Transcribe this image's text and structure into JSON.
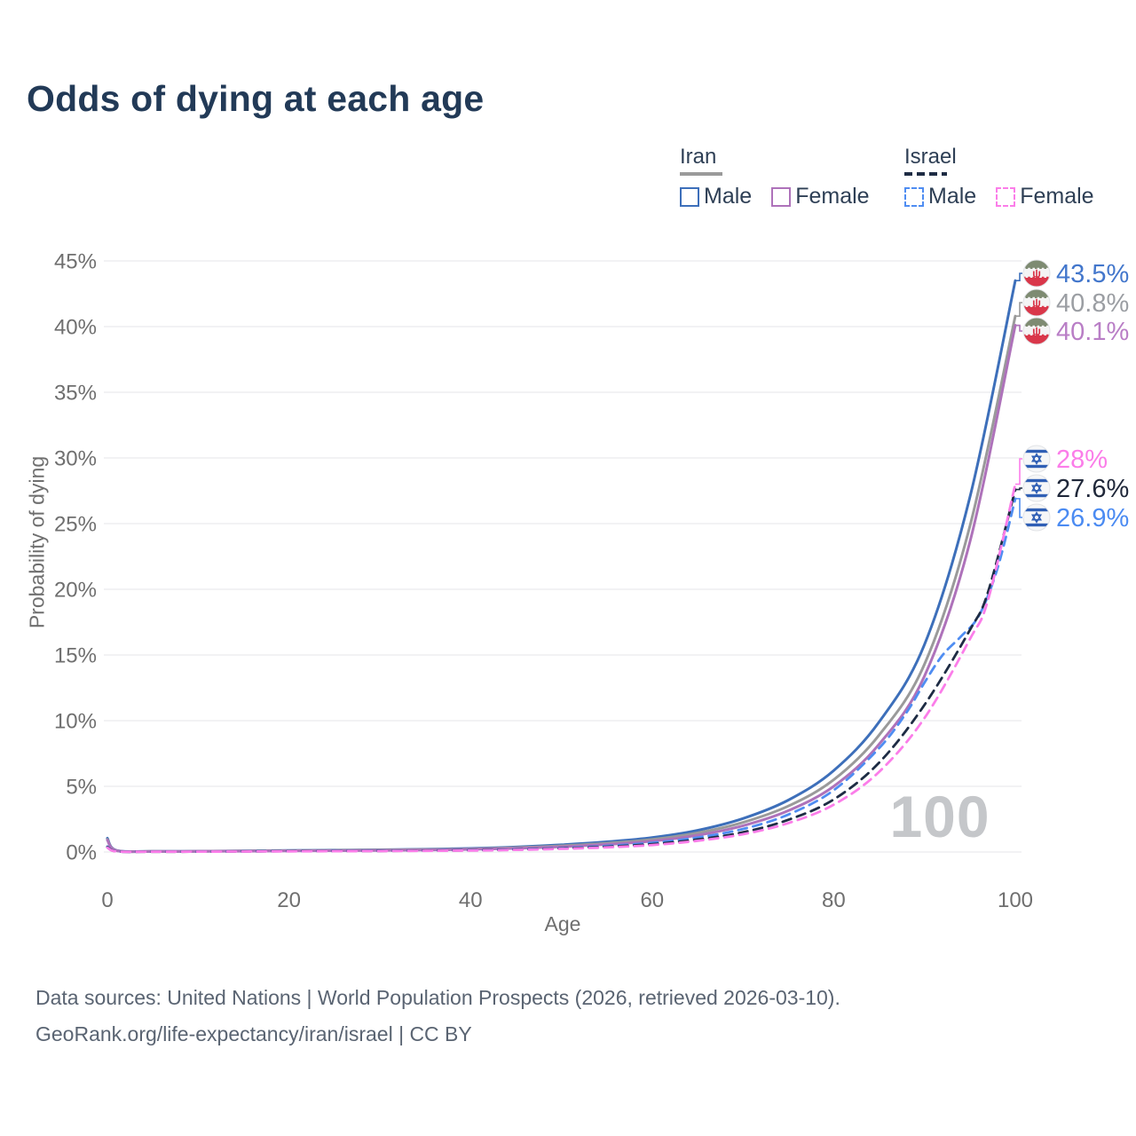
{
  "title": "Odds of dying at each age",
  "legend": {
    "groups": [
      {
        "title": "Iran",
        "swatch_style": "solid",
        "swatch_color": "#9a9a9a",
        "items": [
          {
            "label": "Male",
            "color": "#3d6fba",
            "dashed": false
          },
          {
            "label": "Female",
            "color": "#ae72ba",
            "dashed": false
          }
        ]
      },
      {
        "title": "Israel",
        "swatch_style": "dashed",
        "swatch_color": "#1e2c44",
        "items": [
          {
            "label": "Male",
            "color": "#4f8df2",
            "dashed": true
          },
          {
            "label": "Female",
            "color": "#fb7de9",
            "dashed": true
          }
        ]
      }
    ]
  },
  "chart_data": {
    "type": "line",
    "title": "Odds of dying at each age",
    "xlabel": "Age",
    "ylabel": "Probability of dying",
    "xlim": [
      0,
      100
    ],
    "ylim_percent": [
      0,
      45
    ],
    "x_tick_values": [
      0,
      20,
      40,
      60,
      80,
      100
    ],
    "x_tick_labels": [
      "0",
      "20",
      "40",
      "60",
      "80",
      "100"
    ],
    "y_tick_values": [
      0,
      5,
      10,
      15,
      20,
      25,
      30,
      35,
      40,
      45
    ],
    "y_tick_labels": [
      "0%",
      "5%",
      "10%",
      "15%",
      "20%",
      "25%",
      "30%",
      "35%",
      "40%",
      "45%"
    ],
    "grid": true,
    "legend_position": "top-right",
    "watermark": "100",
    "series": [
      {
        "name": "Iran Male",
        "country": "Iran",
        "group": "Male",
        "color": "#3d6fba",
        "label_color": "#4377cc",
        "style": "solid",
        "end_label": "43.5%",
        "end_value": 43.5,
        "flag": "iran-flag",
        "points": [
          [
            0,
            1.05
          ],
          [
            1,
            0.12
          ],
          [
            5,
            0.05
          ],
          [
            10,
            0.06
          ],
          [
            15,
            0.09
          ],
          [
            20,
            0.12
          ],
          [
            25,
            0.14
          ],
          [
            30,
            0.17
          ],
          [
            35,
            0.21
          ],
          [
            40,
            0.27
          ],
          [
            45,
            0.38
          ],
          [
            50,
            0.55
          ],
          [
            55,
            0.78
          ],
          [
            60,
            1.1
          ],
          [
            65,
            1.65
          ],
          [
            70,
            2.55
          ],
          [
            75,
            3.95
          ],
          [
            80,
            6.2
          ],
          [
            85,
            9.9
          ],
          [
            90,
            15.8
          ],
          [
            95,
            27.0
          ],
          [
            100,
            43.5
          ]
        ]
      },
      {
        "name": "Iran (both sexes)",
        "country": "Iran",
        "group": "All",
        "color": "#9a9a9a",
        "label_color": "#9b9ea3",
        "style": "solid",
        "end_label": "40.8%",
        "end_value": 40.8,
        "flag": "iran-flag",
        "points": [
          [
            0,
            0.95
          ],
          [
            1,
            0.11
          ],
          [
            5,
            0.045
          ],
          [
            10,
            0.05
          ],
          [
            15,
            0.08
          ],
          [
            20,
            0.1
          ],
          [
            25,
            0.12
          ],
          [
            30,
            0.15
          ],
          [
            35,
            0.18
          ],
          [
            40,
            0.23
          ],
          [
            45,
            0.33
          ],
          [
            50,
            0.47
          ],
          [
            55,
            0.67
          ],
          [
            60,
            0.95
          ],
          [
            65,
            1.45
          ],
          [
            70,
            2.25
          ],
          [
            75,
            3.5
          ],
          [
            80,
            5.5
          ],
          [
            85,
            8.9
          ],
          [
            90,
            14.3
          ],
          [
            95,
            24.8
          ],
          [
            100,
            40.8
          ]
        ]
      },
      {
        "name": "Iran Female",
        "country": "Iran",
        "group": "Female",
        "color": "#ae72ba",
        "label_color": "#b97ec6",
        "style": "solid",
        "end_label": "40.1%",
        "end_value": 40.1,
        "flag": "iran-flag",
        "points": [
          [
            0,
            0.9
          ],
          [
            1,
            0.1
          ],
          [
            5,
            0.04
          ],
          [
            10,
            0.045
          ],
          [
            15,
            0.06
          ],
          [
            20,
            0.08
          ],
          [
            25,
            0.1
          ],
          [
            30,
            0.12
          ],
          [
            35,
            0.15
          ],
          [
            40,
            0.2
          ],
          [
            45,
            0.28
          ],
          [
            50,
            0.4
          ],
          [
            55,
            0.58
          ],
          [
            60,
            0.83
          ],
          [
            65,
            1.28
          ],
          [
            70,
            2.0
          ],
          [
            75,
            3.15
          ],
          [
            80,
            5.0
          ],
          [
            85,
            8.2
          ],
          [
            90,
            13.4
          ],
          [
            95,
            23.6
          ],
          [
            100,
            40.1
          ]
        ]
      },
      {
        "name": "Israel Male",
        "country": "Israel",
        "group": "Male",
        "color": "#4f8df2",
        "label_color": "#4b8bf2",
        "style": "dashed",
        "end_label": "26.9%",
        "end_value": 26.9,
        "flag": "israel-flag",
        "points": [
          [
            0,
            0.42
          ],
          [
            1,
            0.05
          ],
          [
            5,
            0.025
          ],
          [
            10,
            0.03
          ],
          [
            15,
            0.05
          ],
          [
            20,
            0.07
          ],
          [
            25,
            0.08
          ],
          [
            30,
            0.09
          ],
          [
            35,
            0.11
          ],
          [
            40,
            0.14
          ],
          [
            45,
            0.2
          ],
          [
            50,
            0.3
          ],
          [
            55,
            0.46
          ],
          [
            60,
            0.7
          ],
          [
            65,
            1.1
          ],
          [
            70,
            1.75
          ],
          [
            75,
            2.85
          ],
          [
            80,
            4.7
          ],
          [
            85,
            7.9
          ],
          [
            88,
            10.6
          ],
          [
            90,
            12.9
          ],
          [
            92,
            15.0
          ],
          [
            94,
            16.4
          ],
          [
            96,
            18.0
          ],
          [
            98,
            21.5
          ],
          [
            100,
            26.9
          ]
        ]
      },
      {
        "name": "Israel (both sexes)",
        "country": "Israel",
        "group": "All",
        "color": "#1e2c44",
        "label_color": "#20283a",
        "style": "dashed",
        "end_label": "27.6%",
        "end_value": 27.6,
        "flag": "israel-flag",
        "points": [
          [
            0,
            0.38
          ],
          [
            1,
            0.045
          ],
          [
            5,
            0.022
          ],
          [
            10,
            0.026
          ],
          [
            15,
            0.04
          ],
          [
            20,
            0.06
          ],
          [
            25,
            0.07
          ],
          [
            30,
            0.08
          ],
          [
            35,
            0.1
          ],
          [
            40,
            0.13
          ],
          [
            45,
            0.18
          ],
          [
            50,
            0.27
          ],
          [
            55,
            0.4
          ],
          [
            60,
            0.6
          ],
          [
            65,
            0.95
          ],
          [
            70,
            1.5
          ],
          [
            75,
            2.45
          ],
          [
            80,
            4.0
          ],
          [
            85,
            6.8
          ],
          [
            90,
            11.2
          ],
          [
            95,
            16.9
          ],
          [
            97,
            19.8
          ],
          [
            100,
            27.6
          ]
        ]
      },
      {
        "name": "Israel Female",
        "country": "Israel",
        "group": "Female",
        "color": "#fb7de9",
        "label_color": "#fb7de9",
        "style": "dashed",
        "end_label": "28%",
        "end_value": 28.0,
        "flag": "israel-flag",
        "points": [
          [
            0,
            0.33
          ],
          [
            1,
            0.04
          ],
          [
            5,
            0.02
          ],
          [
            10,
            0.024
          ],
          [
            15,
            0.035
          ],
          [
            20,
            0.05
          ],
          [
            25,
            0.06
          ],
          [
            30,
            0.07
          ],
          [
            35,
            0.09
          ],
          [
            40,
            0.11
          ],
          [
            45,
            0.16
          ],
          [
            50,
            0.24
          ],
          [
            55,
            0.35
          ],
          [
            60,
            0.53
          ],
          [
            65,
            0.85
          ],
          [
            70,
            1.35
          ],
          [
            75,
            2.2
          ],
          [
            80,
            3.6
          ],
          [
            85,
            6.1
          ],
          [
            90,
            10.2
          ],
          [
            95,
            16.2
          ],
          [
            97,
            19.2
          ],
          [
            100,
            28.0
          ]
        ]
      }
    ]
  },
  "footer": {
    "line1": "Data sources: United Nations | World Population Prospects (2026, retrieved 2026-03-10).",
    "line2": "GeoRank.org/life-expectancy/iran/israel | CC BY"
  }
}
